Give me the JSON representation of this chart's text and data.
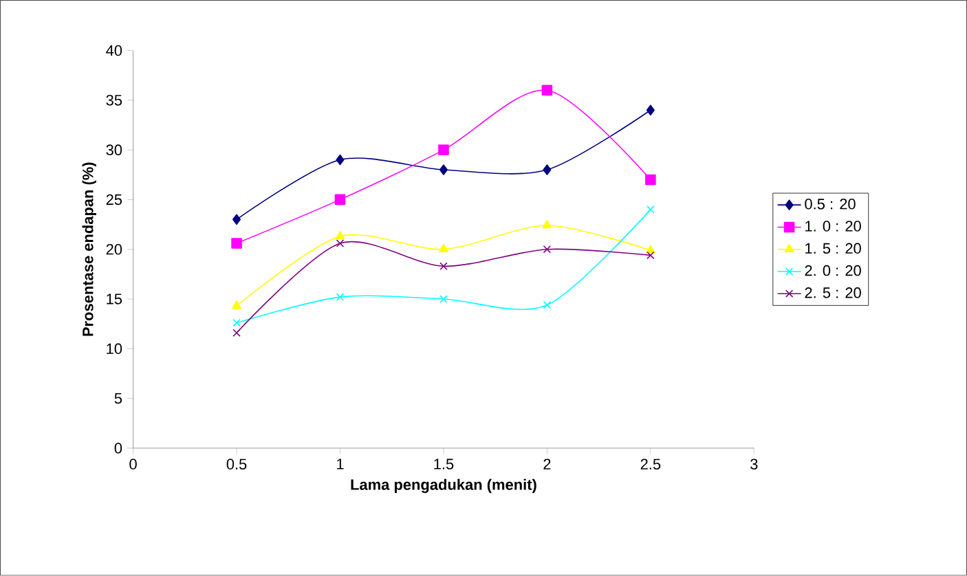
{
  "chart_data": {
    "type": "line",
    "xlabel": "Lama pengadukan (menit)",
    "ylabel": "Prosentase endapan (%)",
    "x": [
      0.5,
      1,
      1.5,
      2,
      2.5
    ],
    "xlim": [
      0,
      3
    ],
    "xticks": [
      0,
      0.5,
      1,
      1.5,
      2,
      2.5,
      3
    ],
    "ylim": [
      0,
      40
    ],
    "yticks": [
      0,
      5,
      10,
      15,
      20,
      25,
      30,
      35,
      40
    ],
    "grid": false,
    "legend": "right",
    "line_style": "solid",
    "series": [
      {
        "name": "0.5 : 20",
        "color": "#000080",
        "marker": "diamond",
        "values": [
          23,
          29,
          28,
          28,
          34
        ]
      },
      {
        "name": "1. 0 : 20",
        "color": "#ff00ff",
        "marker": "square",
        "values": [
          20.6,
          25,
          30,
          36,
          27
        ]
      },
      {
        "name": "1. 5 : 20",
        "color": "#ffff00",
        "marker": "triangle",
        "values": [
          14.3,
          21.3,
          20,
          22.4,
          19.9
        ]
      },
      {
        "name": "2. 0 : 20",
        "color": "#00ffff",
        "marker": "cross",
        "values": [
          12.6,
          15.2,
          15,
          14.4,
          24
        ]
      },
      {
        "name": "2. 5 : 20",
        "color": "#800080",
        "marker": "cross",
        "values": [
          11.6,
          20.6,
          18.3,
          20,
          19.4
        ]
      }
    ]
  }
}
